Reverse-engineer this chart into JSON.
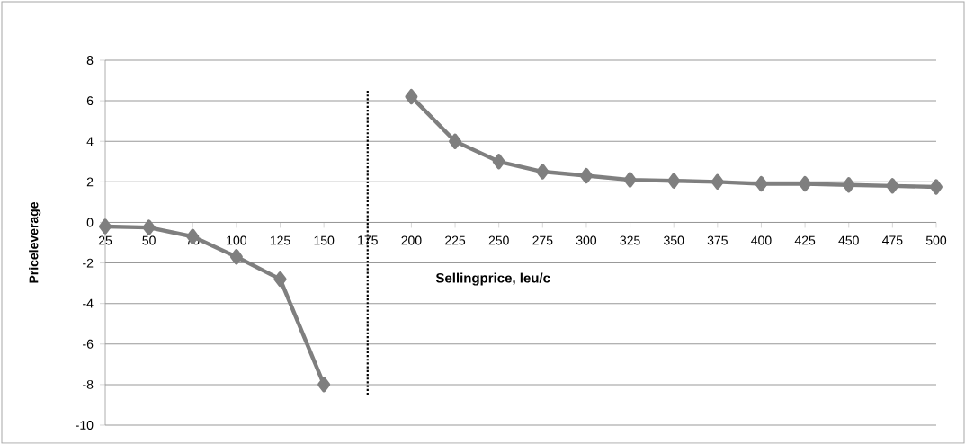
{
  "chart_data": {
    "type": "line",
    "xlabel": "Sellingprice, leu/c",
    "ylabel": "Priceleverage",
    "x": [
      25,
      50,
      75,
      100,
      125,
      150,
      175,
      200,
      225,
      250,
      275,
      300,
      325,
      350,
      375,
      400,
      425,
      450,
      475,
      500
    ],
    "series": [
      {
        "color": "#7f7f7f",
        "values": [
          -0.2,
          -0.25,
          -0.7,
          -1.7,
          -2.8,
          -8,
          null,
          6.2,
          4,
          3,
          2.5,
          2.3,
          2.1,
          2.05,
          2,
          1.9,
          1.9,
          1.85,
          1.8,
          1.75
        ]
      }
    ],
    "xlim": [
      25,
      500
    ],
    "xticks": [
      25,
      50,
      75,
      100,
      125,
      150,
      175,
      200,
      225,
      250,
      275,
      300,
      325,
      350,
      375,
      400,
      425,
      450,
      475,
      500
    ],
    "ylim": [
      -10,
      8
    ],
    "yticks": [
      -10,
      -8,
      -6,
      -4,
      -2,
      0,
      2,
      4,
      6,
      8
    ],
    "ref_lines": [
      {
        "axis": "x",
        "value": 175,
        "line_style": "dotted"
      }
    ],
    "grid": "y",
    "marker": "diamond",
    "line_style": "solid"
  }
}
